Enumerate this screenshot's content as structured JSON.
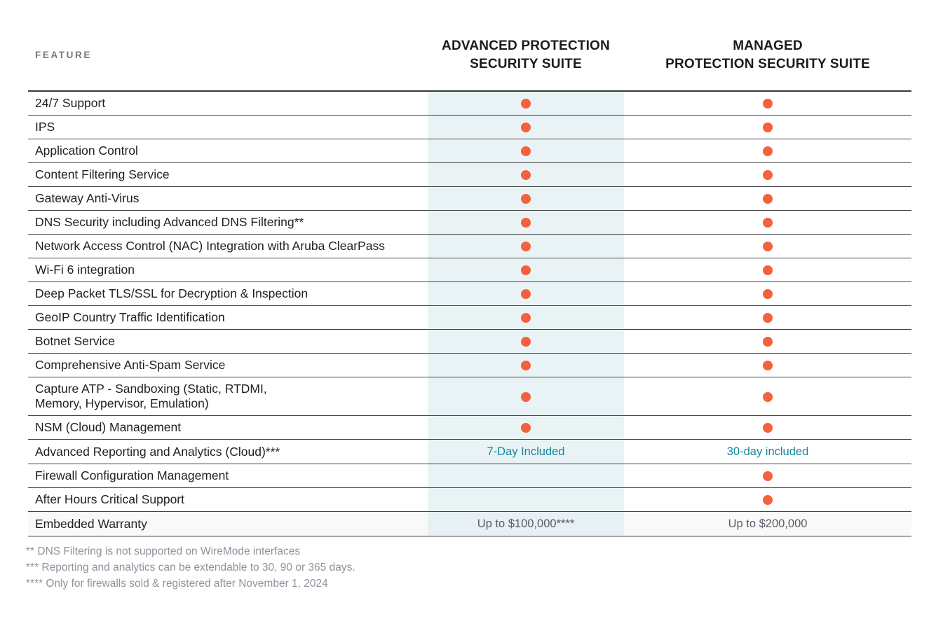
{
  "header": {
    "feature_label": "FEATURE",
    "columns": [
      {
        "id": "advanced",
        "line1": "ADVANCED PROTECTION",
        "line2": "SECURITY SUITE"
      },
      {
        "id": "managed",
        "line1": "MANAGED",
        "line2": "PROTECTION SECURITY SUITE"
      }
    ]
  },
  "rows": [
    {
      "feature": "24/7 Support",
      "advanced": {
        "type": "dot"
      },
      "managed": {
        "type": "dot"
      }
    },
    {
      "feature": "IPS",
      "advanced": {
        "type": "dot"
      },
      "managed": {
        "type": "dot"
      }
    },
    {
      "feature": "Application Control",
      "advanced": {
        "type": "dot"
      },
      "managed": {
        "type": "dot"
      }
    },
    {
      "feature": "Content Filtering Service",
      "advanced": {
        "type": "dot"
      },
      "managed": {
        "type": "dot"
      }
    },
    {
      "feature": "Gateway Anti-Virus",
      "advanced": {
        "type": "dot"
      },
      "managed": {
        "type": "dot"
      }
    },
    {
      "feature": "DNS Security including Advanced DNS Filtering**",
      "advanced": {
        "type": "dot"
      },
      "managed": {
        "type": "dot"
      }
    },
    {
      "feature": "Network Access Control (NAC) Integration with Aruba ClearPass",
      "advanced": {
        "type": "dot"
      },
      "managed": {
        "type": "dot"
      }
    },
    {
      "feature": "Wi-Fi 6 integration",
      "advanced": {
        "type": "dot"
      },
      "managed": {
        "type": "dot"
      }
    },
    {
      "feature": "Deep Packet TLS/SSL for Decryption & Inspection",
      "advanced": {
        "type": "dot"
      },
      "managed": {
        "type": "dot"
      }
    },
    {
      "feature": "GeoIP Country Traffic Identification",
      "advanced": {
        "type": "dot"
      },
      "managed": {
        "type": "dot"
      }
    },
    {
      "feature": "Botnet Service",
      "advanced": {
        "type": "dot"
      },
      "managed": {
        "type": "dot"
      }
    },
    {
      "feature": "Comprehensive Anti-Spam Service",
      "advanced": {
        "type": "dot"
      },
      "managed": {
        "type": "dot"
      }
    },
    {
      "feature": "Capture ATP -  Sandboxing (Static, RTDMI,\nMemory, Hypervisor, Emulation)",
      "advanced": {
        "type": "dot"
      },
      "managed": {
        "type": "dot"
      }
    },
    {
      "feature": "NSM (Cloud) Management",
      "advanced": {
        "type": "dot"
      },
      "managed": {
        "type": "dot"
      }
    },
    {
      "feature": "Advanced Reporting and Analytics (Cloud)***",
      "advanced": {
        "type": "text",
        "text": "7-Day Included",
        "color": "teal"
      },
      "managed": {
        "type": "text",
        "text": "30-day included",
        "color": "teal"
      }
    },
    {
      "feature": "Firewall Configuration Management",
      "advanced": {
        "type": "none"
      },
      "managed": {
        "type": "dot"
      }
    },
    {
      "feature": "After Hours Critical Support",
      "advanced": {
        "type": "none"
      },
      "managed": {
        "type": "dot"
      }
    },
    {
      "feature": "Embedded Warranty",
      "advanced": {
        "type": "text",
        "text": "Up to $100,000****",
        "color": "gray"
      },
      "managed": {
        "type": "text",
        "text": "Up to $200,000",
        "color": "gray"
      },
      "shaded": true
    }
  ],
  "footnotes": [
    "** DNS Filtering is not supported on WireMode interfaces",
    "*** Reporting and analytics can be extendable to 30, 90 or 365 days.",
    "**** Only for firewalls sold & registered after November 1, 2024"
  ],
  "colors": {
    "included_dot": "#f4613c",
    "advanced_column_highlight": "#e9f3f6",
    "teal_value_text": "#12889b",
    "gray_value_text": "#565d66"
  },
  "icons": {
    "included_dot": "filled-circle"
  }
}
